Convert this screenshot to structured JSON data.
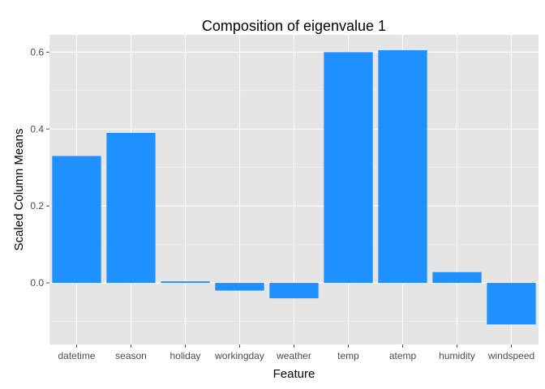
{
  "chart_data": {
    "type": "bar",
    "title": "Composition of eigenvalue 1",
    "xlabel": "Feature",
    "ylabel": "Scaled Column Means",
    "categories": [
      "datetime",
      "season",
      "holiday",
      "workingday",
      "weather",
      "temp",
      "atemp",
      "humidity",
      "windspeed"
    ],
    "values": [
      0.33,
      0.39,
      0.004,
      -0.02,
      -0.04,
      0.6,
      0.605,
      0.028,
      -0.108
    ],
    "ylim": [
      -0.16,
      0.645
    ],
    "yticks": [
      0.0,
      0.2,
      0.4,
      0.6
    ],
    "ytick_labels": [
      "0.0",
      "0.2",
      "0.4",
      "0.6"
    ],
    "grid": true,
    "bar_color": "#1E90FF",
    "panel_color": "#E5E5E5"
  }
}
